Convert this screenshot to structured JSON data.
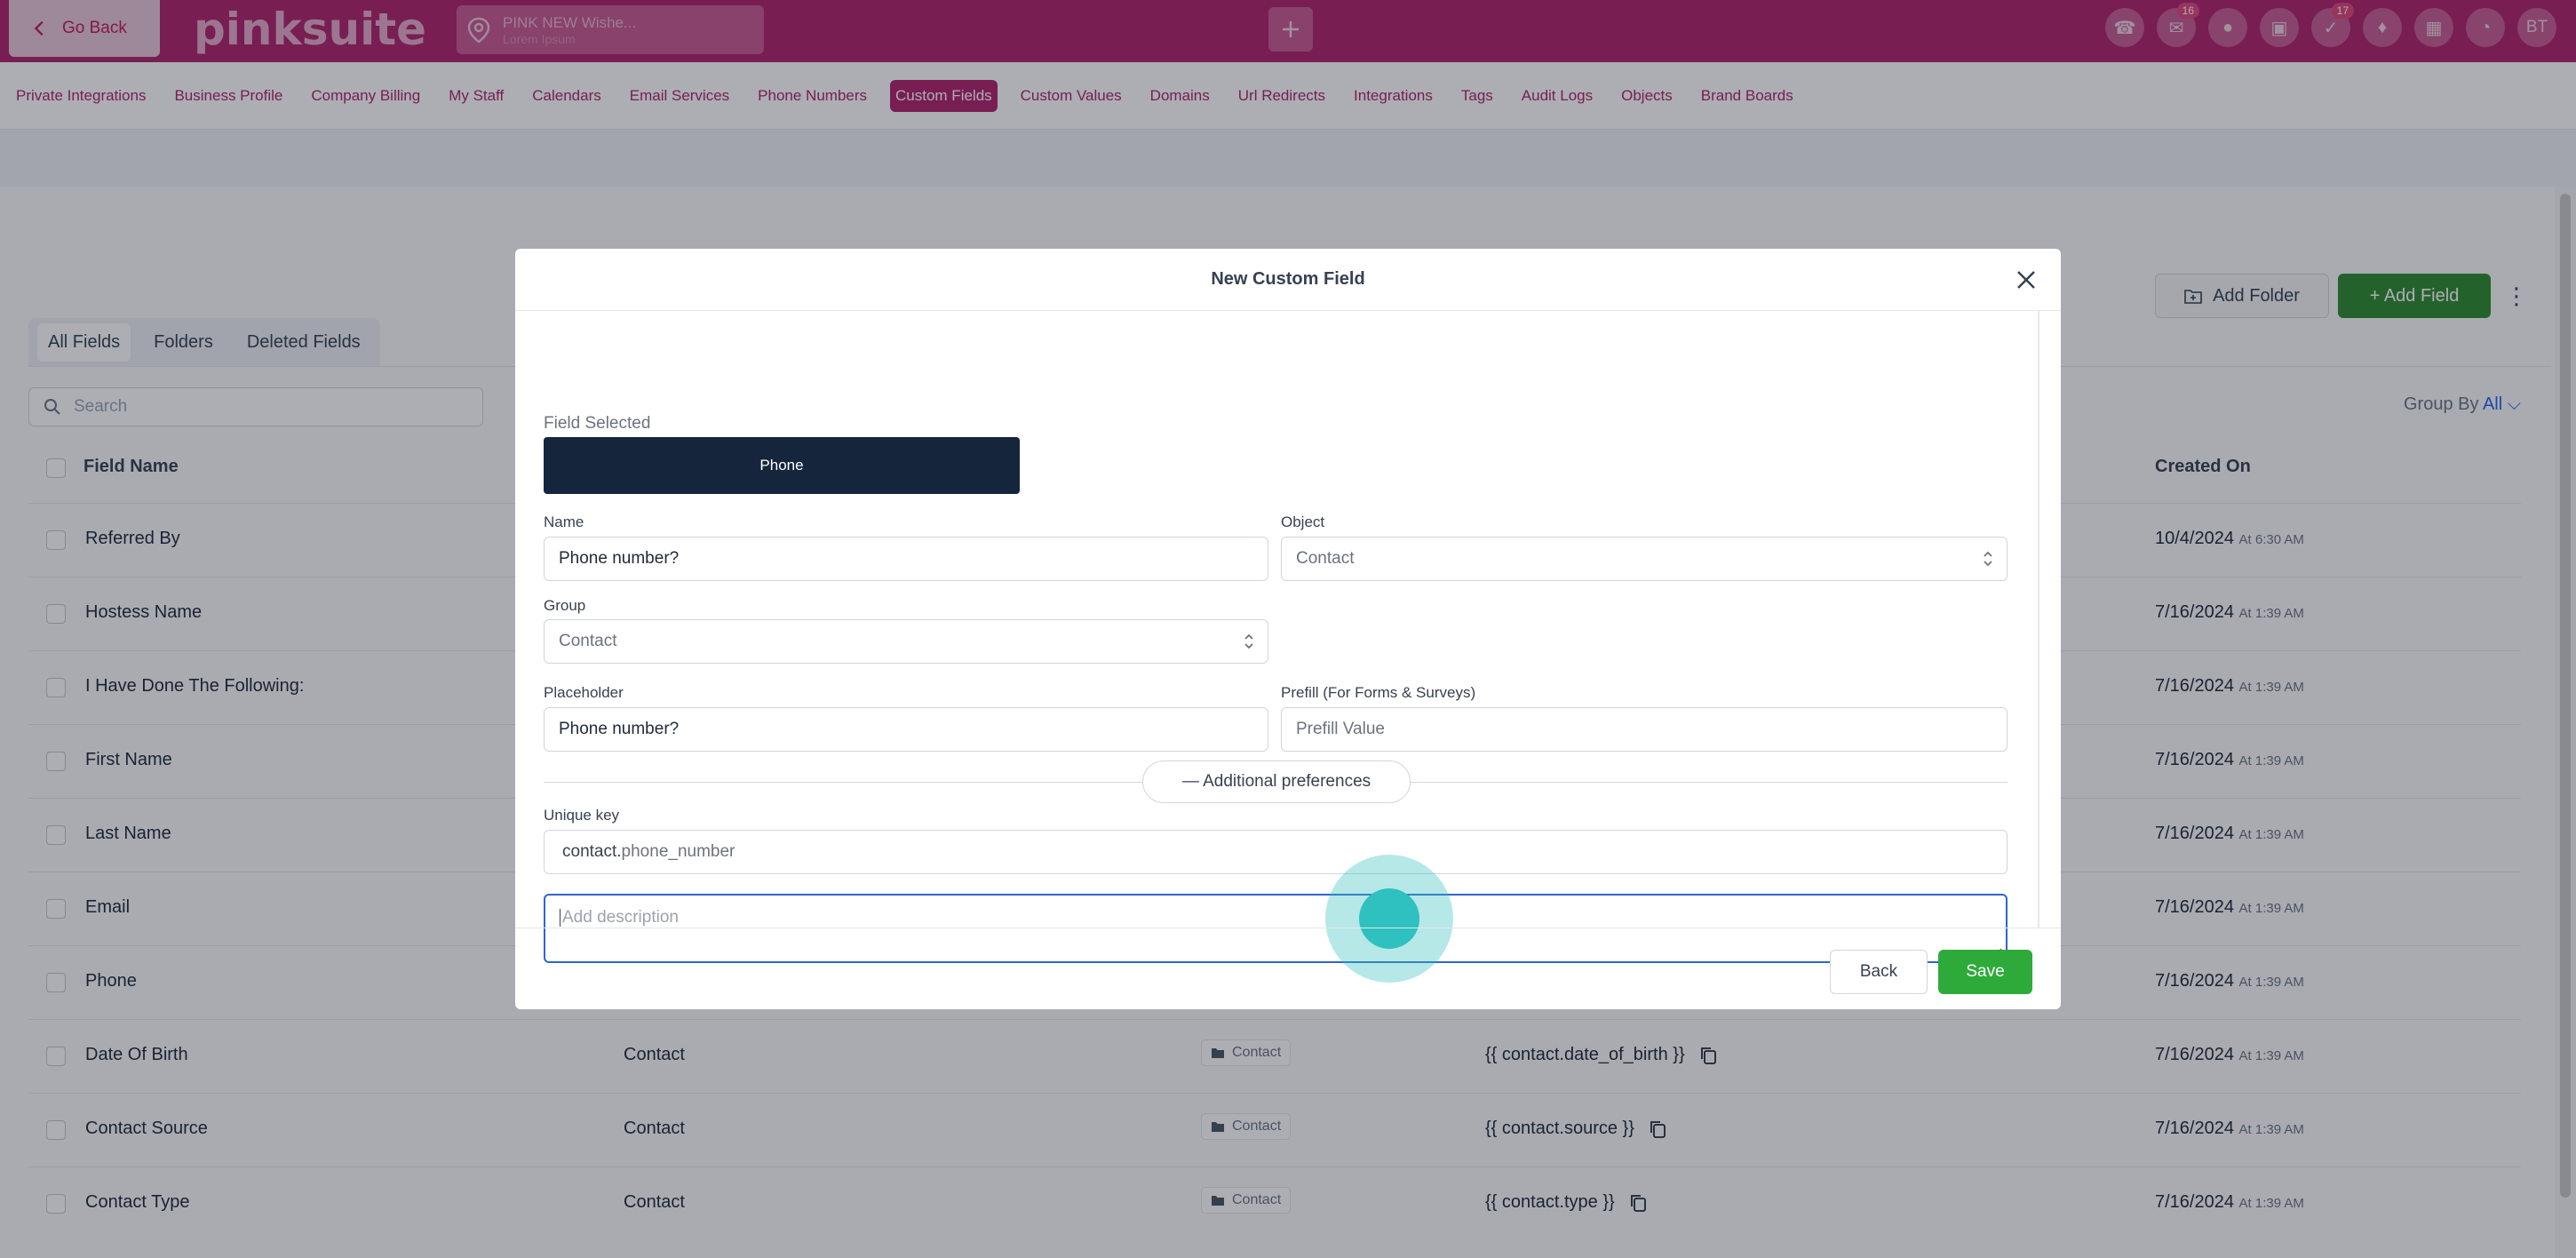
{
  "topbar": {
    "go_back": "Go Back",
    "logo": "pinksuite",
    "location_name": "PINK NEW Wishe...",
    "location_sub": "Lorem Ipsum",
    "badges": {
      "messages": "16",
      "tasks": "17"
    },
    "avatar_initials": "BT",
    "colors": {
      "bar": "#b0236b",
      "accent": "#c9598f"
    }
  },
  "subnav": {
    "items": [
      "Private Integrations",
      "Business Profile",
      "Company Billing",
      "My Staff",
      "Calendars",
      "Email Services",
      "Phone Numbers",
      "Custom Fields",
      "Custom Values",
      "Domains",
      "Url Redirects",
      "Integrations",
      "Tags",
      "Audit Logs",
      "Objects",
      "Brand Boards"
    ],
    "active": "Custom Fields"
  },
  "page": {
    "tabs": [
      "All Fields",
      "Folders",
      "Deleted Fields"
    ],
    "search_placeholder": "Search",
    "add_folder": "Add Folder",
    "add_field": "+ Add Field",
    "group_by_label": "Group By",
    "group_by_value": "All",
    "columns": {
      "field_name": "Field Name",
      "created_on": "Created On"
    },
    "rows": [
      {
        "name": "Referred By",
        "object": "",
        "folder": "",
        "key": "",
        "date": "10/4/2024",
        "time": "At 6:30 AM"
      },
      {
        "name": "Hostess Name",
        "object": "",
        "folder": "",
        "key": "",
        "date": "7/16/2024",
        "time": "At 1:39 AM"
      },
      {
        "name": "I Have Done The Following:",
        "object": "",
        "folder": "",
        "key": "",
        "date": "7/16/2024",
        "time": "At 1:39 AM"
      },
      {
        "name": "First Name",
        "object": "",
        "folder": "",
        "key": "",
        "date": "7/16/2024",
        "time": "At 1:39 AM"
      },
      {
        "name": "Last Name",
        "object": "",
        "folder": "",
        "key": "",
        "date": "7/16/2024",
        "time": "At 1:39 AM"
      },
      {
        "name": "Email",
        "object": "",
        "folder": "",
        "key": "",
        "date": "7/16/2024",
        "time": "At 1:39 AM"
      },
      {
        "name": "Phone",
        "object": "",
        "folder": "",
        "key": "",
        "date": "7/16/2024",
        "time": "At 1:39 AM"
      },
      {
        "name": "Date Of Birth",
        "object": "Contact",
        "folder": "Contact",
        "key": "{{ contact.date_of_birth }}",
        "date": "7/16/2024",
        "time": "At 1:39 AM"
      },
      {
        "name": "Contact Source",
        "object": "Contact",
        "folder": "Contact",
        "key": "{{ contact.source }}",
        "date": "7/16/2024",
        "time": "At 1:39 AM"
      },
      {
        "name": "Contact Type",
        "object": "Contact",
        "folder": "Contact",
        "key": "{{ contact.type }}",
        "date": "7/16/2024",
        "time": "At 1:39 AM"
      }
    ]
  },
  "modal": {
    "title": "New Custom Field",
    "field_selected_label": "Field Selected",
    "field_selected_value": "Phone",
    "name_label": "Name",
    "name_value": "Phone number?",
    "object_label": "Object",
    "object_value": "Contact",
    "group_label": "Group",
    "group_value": "Contact",
    "placeholder_label": "Placeholder",
    "placeholder_value": "Phone number?",
    "prefill_label": "Prefill (For Forms & Surveys)",
    "prefill_placeholder": "Prefill Value",
    "additional_preferences": "— Additional preferences",
    "unique_key_label": "Unique key",
    "unique_key_prefix": "contact.",
    "unique_key_suffix": "phone_number",
    "description_placeholder": "Add description",
    "back": "Back",
    "save": "Save"
  }
}
